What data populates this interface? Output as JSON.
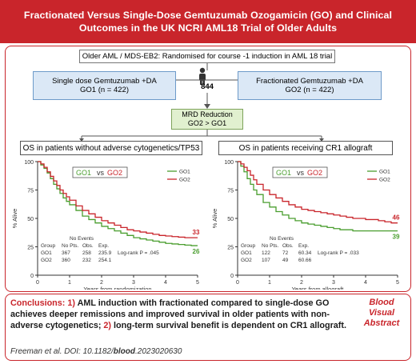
{
  "title": "Fractionated Versus Single-Dose Gemtuzumab Ozogamicin (GO) and Clinical Outcomes in the UK NCRI AML18 Trial  of Older Adults",
  "flow": {
    "top": "Older AML / MDS-EB2: Randomised for course -1 induction in AML 18 trial",
    "n_total": "844",
    "left_arm_line1": "Single dose Gemtuzumab +DA",
    "left_arm_line2": "GO1 (n = 422)",
    "right_arm_line1": "Fractionated Gemtuzumab +DA",
    "right_arm_line2": "GO2 (n = 422)",
    "mrd_line1": "MRD Reduction",
    "mrd_line2": "GO2 > GO1"
  },
  "colors": {
    "brand": "#c9252b",
    "go1": "#4a9e2f",
    "go2": "#c9252b"
  },
  "chart_data": [
    {
      "type": "line",
      "title": "OS in patients without adverse cytogenetics/TP53",
      "xlabel": "Years from randomization",
      "ylabel": "% Alive",
      "xlim": [
        0,
        5
      ],
      "ylim": [
        0,
        100
      ],
      "xticks": [
        "0",
        "1",
        "2",
        "3",
        "4",
        "5"
      ],
      "yticks": [
        "0",
        "25",
        "50",
        "75",
        "100"
      ],
      "legend_box": {
        "go1": "GO1",
        "vs": "vs",
        "go2": "GO2"
      },
      "legend": [
        "GO1",
        "GO2"
      ],
      "series": [
        {
          "name": "GO1",
          "x": [
            0,
            0.1,
            0.2,
            0.3,
            0.4,
            0.5,
            0.6,
            0.7,
            0.8,
            0.9,
            1.0,
            1.2,
            1.4,
            1.6,
            1.8,
            2.0,
            2.2,
            2.4,
            2.6,
            2.8,
            3.0,
            3.2,
            3.4,
            3.6,
            3.8,
            4.0,
            4.2,
            4.4,
            4.6,
            4.8,
            5.0
          ],
          "y": [
            100,
            97,
            94,
            90,
            85,
            80,
            76,
            72,
            68,
            65,
            62,
            57,
            52,
            49,
            46,
            43,
            41,
            39,
            37,
            35,
            33,
            32,
            31,
            30,
            29,
            28,
            27.5,
            27,
            26.5,
            26,
            26
          ]
        },
        {
          "name": "GO2",
          "x": [
            0,
            0.1,
            0.2,
            0.3,
            0.4,
            0.5,
            0.6,
            0.7,
            0.8,
            0.9,
            1.0,
            1.2,
            1.4,
            1.6,
            1.8,
            2.0,
            2.2,
            2.4,
            2.6,
            2.8,
            3.0,
            3.2,
            3.4,
            3.6,
            3.8,
            4.0,
            4.2,
            4.4,
            4.6,
            4.8,
            5.0
          ],
          "y": [
            100,
            98,
            95,
            91,
            87,
            83,
            79,
            75,
            72,
            69,
            66,
            61,
            57,
            54,
            51,
            48,
            46,
            44,
            42,
            40,
            39,
            38,
            37,
            36,
            35,
            34.5,
            34,
            33.5,
            33,
            33,
            33
          ]
        }
      ],
      "end_labels": {
        "go2": "33",
        "go1": "26"
      },
      "table": {
        "header_events": "No Events",
        "columns": [
          "Group",
          "No Pts.",
          "Obs.",
          "Exp."
        ],
        "rows": [
          [
            "GO1",
            "367",
            "258",
            "235.9"
          ],
          [
            "GO2",
            "360",
            "232",
            "254.1"
          ]
        ],
        "logrank": "Log-rank P = .045"
      }
    },
    {
      "type": "line",
      "title": "OS in patients receiving CR1 allograft",
      "xlabel": "Years from allograft",
      "ylabel": "% Alive",
      "xlim": [
        0,
        5
      ],
      "ylim": [
        0,
        100
      ],
      "xticks": [
        "0",
        "1",
        "2",
        "3",
        "4",
        "5"
      ],
      "yticks": [
        "0",
        "25",
        "50",
        "75",
        "100"
      ],
      "legend_box": {
        "go1": "GO1",
        "vs": "vs",
        "go2": "GO2"
      },
      "legend": [
        "GO1",
        "GO2"
      ],
      "series": [
        {
          "name": "GO1",
          "x": [
            0,
            0.1,
            0.2,
            0.3,
            0.4,
            0.5,
            0.6,
            0.8,
            1.0,
            1.2,
            1.4,
            1.6,
            1.8,
            2.0,
            2.2,
            2.4,
            2.6,
            2.8,
            3.0,
            3.2,
            3.4,
            3.6,
            3.8,
            4.0,
            4.2,
            4.4,
            4.6,
            4.8,
            5.0
          ],
          "y": [
            100,
            96,
            91,
            85,
            80,
            75,
            71,
            64,
            60,
            56,
            53,
            50,
            48,
            46,
            45,
            44,
            43,
            42,
            41,
            40,
            40,
            39,
            39,
            39,
            39,
            39,
            39,
            39,
            39
          ]
        },
        {
          "name": "GO2",
          "x": [
            0,
            0.1,
            0.2,
            0.3,
            0.4,
            0.5,
            0.6,
            0.8,
            1.0,
            1.2,
            1.4,
            1.6,
            1.8,
            2.0,
            2.2,
            2.4,
            2.6,
            2.8,
            3.0,
            3.2,
            3.4,
            3.6,
            3.8,
            4.0,
            4.2,
            4.4,
            4.6,
            4.8,
            5.0
          ],
          "y": [
            100,
            98,
            95,
            92,
            88,
            84,
            80,
            75,
            71,
            68,
            65,
            62,
            60,
            58,
            57,
            56,
            55,
            54,
            53,
            52,
            51,
            50,
            50,
            49,
            49,
            48,
            47,
            46,
            46
          ]
        }
      ],
      "end_labels": {
        "go2": "46",
        "go1": "39"
      },
      "table": {
        "header_events": "No Events",
        "columns": [
          "Group",
          "No Pts.",
          "Obs.",
          "Exp."
        ],
        "rows": [
          [
            "GO1",
            "122",
            "72",
            "60.34"
          ],
          [
            "GO2",
            "107",
            "49",
            "60.66"
          ]
        ],
        "logrank": "Log-rank P = .033"
      }
    }
  ],
  "conclusions": {
    "label": "Conclusions:",
    "n1": "1)",
    "part1": "AML induction with fractionated compared to single-dose GO achieves deeper remissions and improved survival in older patients with non-adverse cytogenetics;",
    "n2": "2)",
    "part2": "long-term survival benefit is dependent on CR1 allograft.",
    "doi_prefix": "Freeman et al. DOI: 10.1182/",
    "doi_journal": "blood",
    "doi_suffix": ".2023020630"
  },
  "badge": {
    "line1": "Blood",
    "line2": "Visual",
    "line3": "Abstract"
  }
}
